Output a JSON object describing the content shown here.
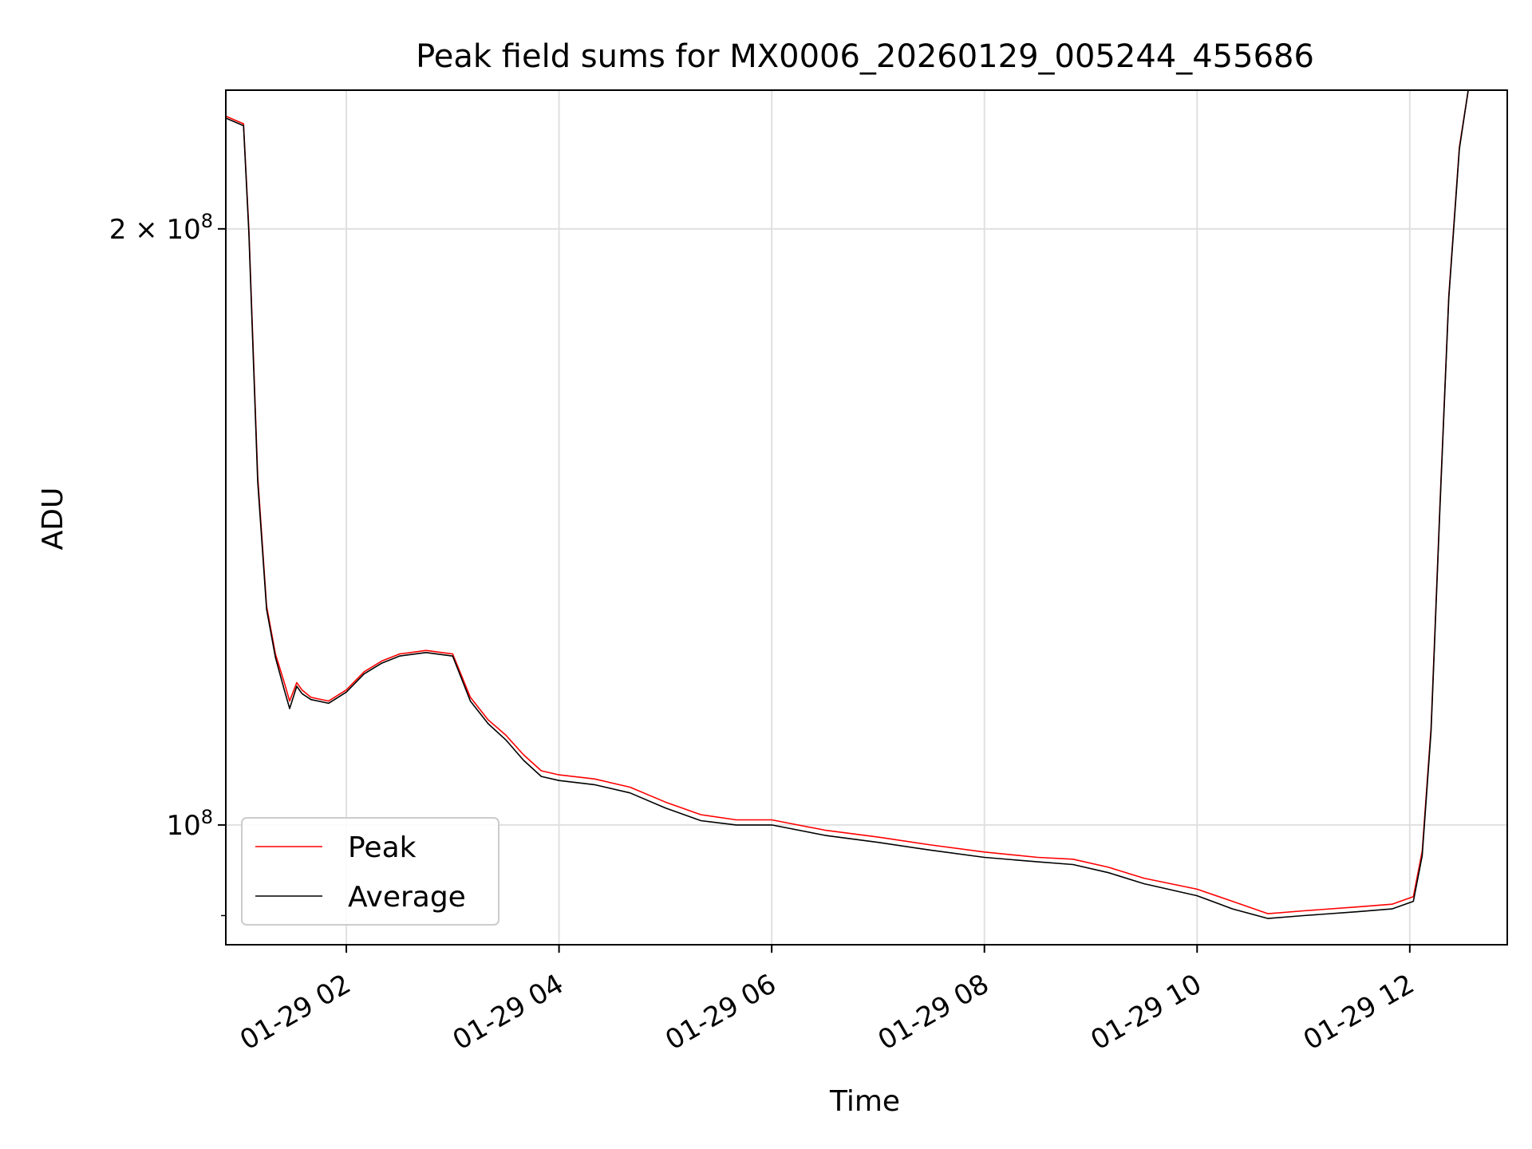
{
  "chart_data": {
    "type": "line",
    "title": "Peak field sums for MX0006_20260129_005244_455686",
    "xlabel": "Time",
    "ylabel": "ADU",
    "x_type": "time",
    "x_range": [
      "2026-01-29 00:52",
      "2026-01-29 12:55"
    ],
    "x_ticks": [
      {
        "value": "2026-01-29 02:00",
        "label": "01-29 02"
      },
      {
        "value": "2026-01-29 04:00",
        "label": "01-29 04"
      },
      {
        "value": "2026-01-29 06:00",
        "label": "01-29 06"
      },
      {
        "value": "2026-01-29 08:00",
        "label": "01-29 08"
      },
      {
        "value": "2026-01-29 10:00",
        "label": "01-29 10"
      },
      {
        "value": "2026-01-29 12:00",
        "label": "01-29 12"
      }
    ],
    "y_scale": "log",
    "y_range": [
      87000000,
      235000000
    ],
    "y_ticks": [
      {
        "value": 100000000,
        "mantissa": "",
        "base": "10",
        "exponent": "8"
      },
      {
        "value": 200000000,
        "mantissa": "2 × ",
        "base": "10",
        "exponent": "8"
      }
    ],
    "y_minor_ticks": [
      90000000
    ],
    "grid": true,
    "legend_position": "lower-left",
    "series": [
      {
        "name": "Peak",
        "color": "#ff0000",
        "x": [
          "2026-01-29 00:52",
          "2026-01-29 01:02",
          "2026-01-29 01:05",
          "2026-01-29 01:10",
          "2026-01-29 01:15",
          "2026-01-29 01:20",
          "2026-01-29 01:25",
          "2026-01-29 01:28",
          "2026-01-29 01:32",
          "2026-01-29 01:35",
          "2026-01-29 01:40",
          "2026-01-29 01:50",
          "2026-01-29 02:00",
          "2026-01-29 02:10",
          "2026-01-29 02:20",
          "2026-01-29 02:30",
          "2026-01-29 02:45",
          "2026-01-29 03:00",
          "2026-01-29 03:10",
          "2026-01-29 03:20",
          "2026-01-29 03:30",
          "2026-01-29 03:40",
          "2026-01-29 03:50",
          "2026-01-29 04:00",
          "2026-01-29 04:20",
          "2026-01-29 04:40",
          "2026-01-29 05:00",
          "2026-01-29 05:20",
          "2026-01-29 05:40",
          "2026-01-29 06:00",
          "2026-01-29 06:30",
          "2026-01-29 07:00",
          "2026-01-29 07:30",
          "2026-01-29 08:00",
          "2026-01-29 08:30",
          "2026-01-29 08:50",
          "2026-01-29 09:10",
          "2026-01-29 09:30",
          "2026-01-29 10:00",
          "2026-01-29 10:20",
          "2026-01-29 10:40",
          "2026-01-29 11:00",
          "2026-01-29 11:30",
          "2026-01-29 11:50",
          "2026-01-29 12:02",
          "2026-01-29 12:07",
          "2026-01-29 12:12",
          "2026-01-29 12:17",
          "2026-01-29 12:22",
          "2026-01-29 12:28",
          "2026-01-29 12:33",
          "2026-01-29 12:36"
        ],
        "y": [
          228000000,
          226000000,
          200000000,
          150000000,
          129000000,
          122000000,
          118000000,
          115500000,
          118000000,
          117000000,
          116000000,
          115500000,
          117000000,
          119500000,
          121000000,
          122000000,
          122500000,
          122000000,
          116000000,
          113000000,
          111000000,
          108500000,
          106500000,
          106000000,
          105500000,
          104500000,
          102700000,
          101200000,
          100600000,
          100600000,
          99400000,
          98600000,
          97700000,
          96900000,
          96300000,
          96100000,
          95200000,
          94000000,
          92800000,
          91500000,
          90200000,
          90500000,
          90900000,
          91200000,
          92000000,
          97000000,
          112000000,
          145000000,
          185000000,
          220000000,
          235000000,
          235000000
        ]
      },
      {
        "name": "Average",
        "color": "#000000",
        "x": [
          "2026-01-29 00:52",
          "2026-01-29 01:02",
          "2026-01-29 01:05",
          "2026-01-29 01:10",
          "2026-01-29 01:15",
          "2026-01-29 01:20",
          "2026-01-29 01:25",
          "2026-01-29 01:28",
          "2026-01-29 01:32",
          "2026-01-29 01:35",
          "2026-01-29 01:40",
          "2026-01-29 01:50",
          "2026-01-29 02:00",
          "2026-01-29 02:10",
          "2026-01-29 02:20",
          "2026-01-29 02:30",
          "2026-01-29 02:45",
          "2026-01-29 03:00",
          "2026-01-29 03:10",
          "2026-01-29 03:20",
          "2026-01-29 03:30",
          "2026-01-29 03:40",
          "2026-01-29 03:50",
          "2026-01-29 04:00",
          "2026-01-29 04:20",
          "2026-01-29 04:40",
          "2026-01-29 05:00",
          "2026-01-29 05:20",
          "2026-01-29 05:40",
          "2026-01-29 06:00",
          "2026-01-29 06:30",
          "2026-01-29 07:00",
          "2026-01-29 07:30",
          "2026-01-29 08:00",
          "2026-01-29 08:30",
          "2026-01-29 08:50",
          "2026-01-29 09:10",
          "2026-01-29 09:30",
          "2026-01-29 10:00",
          "2026-01-29 10:20",
          "2026-01-29 10:40",
          "2026-01-29 11:00",
          "2026-01-29 11:30",
          "2026-01-29 11:50",
          "2026-01-29 12:02",
          "2026-01-29 12:07",
          "2026-01-29 12:12",
          "2026-01-29 12:17",
          "2026-01-29 12:22",
          "2026-01-29 12:28",
          "2026-01-29 12:33",
          "2026-01-29 12:36"
        ],
        "y": [
          227500000,
          225500000,
          199000000,
          149000000,
          128500000,
          121500000,
          117000000,
          114500000,
          117500000,
          116500000,
          115700000,
          115200000,
          116700000,
          119200000,
          120700000,
          121700000,
          122200000,
          121700000,
          115500000,
          112500000,
          110400000,
          107800000,
          105800000,
          105300000,
          104800000,
          103800000,
          102000000,
          100500000,
          100000000,
          100000000,
          98800000,
          98000000,
          97100000,
          96300000,
          95800000,
          95500000,
          94600000,
          93400000,
          92100000,
          90700000,
          89700000,
          90000000,
          90400000,
          90700000,
          91500000,
          96500000,
          111500000,
          144500000,
          184500000,
          219500000,
          235000000,
          235000000
        ]
      }
    ]
  }
}
